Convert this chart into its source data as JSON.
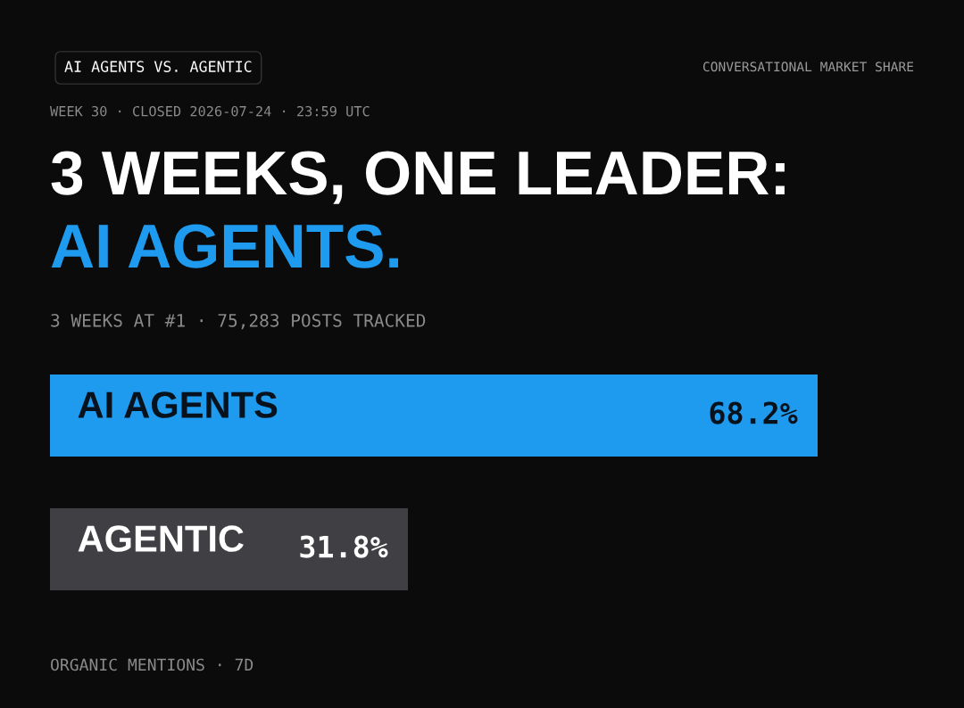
{
  "chart_data": {
    "type": "bar",
    "orientation": "horizontal",
    "title": "3 WEEKS, ONE LEADER: AI AGENTS.",
    "subtitle": "WEEK 30 · CLOSED 2026-07-24 · 23:59 UTC",
    "annotations": [
      "AI AGENTS VS. AGENTIC",
      "CONVERSATIONAL MARKET SHARE",
      "3 WEEKS AT #1 · 75,283 POSTS TRACKED",
      "ORGANIC MENTIONS · 7D"
    ],
    "categories": [
      "AI AGENTS",
      "AGENTIC"
    ],
    "values": [
      68.2,
      31.8
    ],
    "colors": [
      "#1e9bef",
      "#3f3f44"
    ],
    "value_labels": [
      "68.2%",
      "31.8%"
    ]
  }
}
